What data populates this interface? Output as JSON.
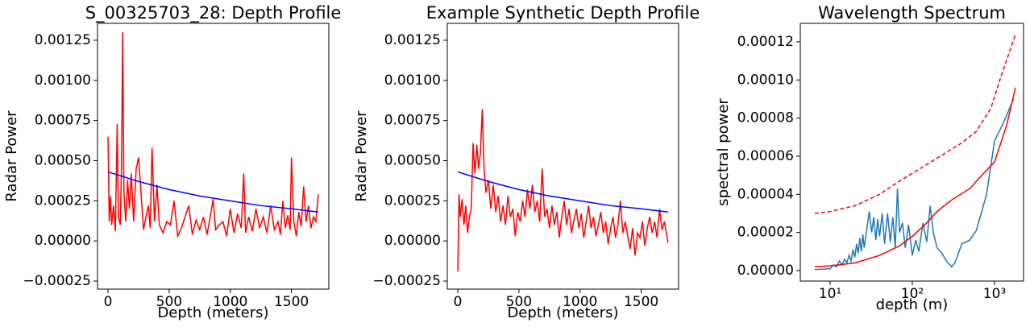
{
  "chart_data": [
    {
      "type": "line",
      "title": "S_00325703_28: Depth Profile",
      "xlabel": "Depth (meters)",
      "ylabel": "Radar Power",
      "xlim": [
        -86,
        1806
      ],
      "ylim": [
        -0.0003,
        0.001355
      ],
      "xticks": [
        0,
        500,
        1000,
        1500
      ],
      "yticks": [
        {
          "value": -0.00025,
          "label": "−0.00025"
        },
        {
          "value": 0,
          "label": "0.00000"
        },
        {
          "value": 0.00025,
          "label": "0.00025"
        },
        {
          "value": 0.0005,
          "label": "0.00050"
        },
        {
          "value": 0.00075,
          "label": "0.00075"
        },
        {
          "value": 0.001,
          "label": "0.00100"
        },
        {
          "value": 0.00125,
          "label": "0.00125"
        }
      ],
      "series": [
        {
          "color": "#ff0000",
          "x": [
            0,
            10,
            20,
            30,
            45,
            60,
            75,
            85,
            100,
            110,
            120,
            130,
            145,
            160,
            175,
            190,
            210,
            230,
            250,
            270,
            290,
            310,
            330,
            345,
            360,
            380,
            400,
            420,
            450,
            480,
            510,
            540,
            570,
            600,
            630,
            660,
            690,
            720,
            750,
            780,
            810,
            840,
            860,
            880,
            910,
            940,
            970,
            1000,
            1030,
            1060,
            1090,
            1110,
            1125,
            1150,
            1180,
            1210,
            1240,
            1270,
            1300,
            1330,
            1360,
            1390,
            1410,
            1430,
            1450,
            1470,
            1490,
            1500,
            1520,
            1540,
            1560,
            1580,
            1600,
            1620,
            1640,
            1660,
            1680,
            1700,
            1720
          ],
          "values": [
            0.00065,
            0.00012,
            0.00028,
            0.0001,
            0.00022,
            6e-05,
            0.00073,
            0.00015,
            0.0001,
            0.00045,
            0.0013,
            0.0003,
            0.00012,
            0.00038,
            0.0002,
            0.00042,
            0.00012,
            0.00045,
            0.00052,
            0.0003,
            7e-05,
            0.00015,
            0.00022,
            8e-05,
            0.00058,
            0.00012,
            0.00035,
            0.0001,
            5e-05,
            0.00012,
            0.0001,
            0.00025,
            3e-05,
            8e-05,
            0.00015,
            0.00022,
            4e-05,
            0.00013,
            7e-05,
            0.00015,
            4e-05,
            0.00017,
            0.00026,
            7e-05,
            0.0001,
            0.00012,
            3e-05,
            0.0002,
            5e-05,
            0.00017,
            8e-05,
            0.00042,
            5e-05,
            0.00015,
            6e-05,
            0.0002,
            8e-05,
            0.00015,
            5e-05,
            0.00022,
            7e-05,
            0.00012,
            4e-05,
            0.00025,
            8e-05,
            0.00016,
            7e-05,
            0.00052,
            0.00012,
            3e-05,
            0.00018,
            9e-05,
            0.00034,
            0.00012,
            0.00022,
            8e-05,
            0.00015,
            0.00012,
            0.00029
          ]
        },
        {
          "color": "#0000ff",
          "x": [
            0,
            250,
            500,
            750,
            1000,
            1250,
            1500,
            1720
          ],
          "values": [
            0.00043,
            0.00037,
            0.00032,
            0.00028,
            0.00025,
            0.00022,
            0.0002,
            0.00018
          ]
        }
      ]
    },
    {
      "type": "line",
      "title": "Example Synthetic Depth Profile",
      "xlabel": "Depth (meters)",
      "ylabel": "Radar Power",
      "xlim": [
        -86,
        1806
      ],
      "ylim": [
        -0.0003,
        0.001355
      ],
      "xticks": [
        0,
        500,
        1000,
        1500
      ],
      "yticks": [
        {
          "value": -0.00025,
          "label": "−0.00025"
        },
        {
          "value": 0,
          "label": "0.00000"
        },
        {
          "value": 0.00025,
          "label": "0.00025"
        },
        {
          "value": 0.0005,
          "label": "0.00050"
        },
        {
          "value": 0.00075,
          "label": "0.00075"
        },
        {
          "value": 0.001,
          "label": "0.00100"
        },
        {
          "value": 0.00125,
          "label": "0.00125"
        }
      ],
      "series": [
        {
          "color": "#ff0000",
          "x": [
            0,
            10,
            20,
            35,
            50,
            65,
            80,
            95,
            110,
            125,
            140,
            155,
            170,
            185,
            200,
            215,
            230,
            250,
            270,
            290,
            310,
            330,
            350,
            370,
            390,
            410,
            430,
            450,
            470,
            490,
            510,
            530,
            550,
            570,
            590,
            610,
            630,
            650,
            670,
            690,
            710,
            730,
            750,
            770,
            790,
            810,
            830,
            850,
            870,
            890,
            910,
            930,
            950,
            970,
            990,
            1010,
            1030,
            1050,
            1070,
            1090,
            1110,
            1130,
            1150,
            1170,
            1190,
            1210,
            1230,
            1250,
            1270,
            1290,
            1310,
            1330,
            1350,
            1370,
            1390,
            1410,
            1430,
            1450,
            1470,
            1490,
            1510,
            1530,
            1550,
            1570,
            1590,
            1610,
            1630,
            1650,
            1670,
            1690,
            1710,
            1720
          ],
          "values": [
            -0.00019,
            0.00029,
            0.00015,
            0.00026,
            0.0001,
            0.00022,
            5e-05,
            0.00015,
            0.0002,
            0.00061,
            0.00042,
            0.0006,
            0.00045,
            0.00055,
            0.00082,
            0.00045,
            0.0003,
            0.00038,
            0.0002,
            0.00035,
            0.00018,
            0.00028,
            0.00012,
            0.00022,
            0.0001,
            0.00028,
            0.00015,
            0.0002,
            3e-05,
            0.00018,
            0.00012,
            0.00025,
            0.00015,
            0.00032,
            0.0002,
            0.00035,
            0.00018,
            0.00025,
            0.00012,
            0.00045,
            0.00015,
            0.0002,
            8e-05,
            0.00022,
            0.0001,
            0.00018,
            2e-05,
            0.00015,
            0.00025,
            0.0001,
            0.0002,
            5e-05,
            0.00013,
            0.0002,
            8e-05,
            0.00017,
            2e-05,
            0.00012,
            0.00022,
            8e-05,
            0.00015,
            3e-05,
            0.0001,
            0.00018,
            5e-05,
            0.00012,
            -2e-05,
            8e-05,
            0.00015,
            2e-05,
            0.0001,
            0.00025,
            5e-05,
            0.00012,
            3e-05,
            -5e-05,
            8e-05,
            -9e-05,
            5e-05,
            2e-05,
            0.00012,
            -3e-05,
            8e-05,
            0.00015,
            5e-05,
            0.00012,
            2e-05,
            0.0002,
            7e-05,
            0.00012,
            3e-05,
            -1e-05
          ]
        },
        {
          "color": "#0000ff",
          "x": [
            0,
            250,
            500,
            750,
            1000,
            1250,
            1500,
            1720
          ],
          "values": [
            0.00043,
            0.00037,
            0.00032,
            0.00028,
            0.00025,
            0.00022,
            0.0002,
            0.00018
          ]
        }
      ]
    },
    {
      "type": "line",
      "title": "Wavelength Spectrum",
      "xlabel": "depth (m)",
      "ylabel": "spectral power",
      "xscale": "log",
      "xlim": [
        4.34,
        2254
      ],
      "ylim": [
        -5.5e-06,
        0.0001297
      ],
      "xticks": [
        {
          "value": 10,
          "label": "10¹"
        },
        {
          "value": 100,
          "label": "10²"
        },
        {
          "value": 1000,
          "label": "10³"
        }
      ],
      "yticks": [
        {
          "value": 0,
          "label": "0.00000"
        },
        {
          "value": 2e-05,
          "label": "0.00002"
        },
        {
          "value": 4e-05,
          "label": "0.00004"
        },
        {
          "value": 6e-05,
          "label": "0.00006"
        },
        {
          "value": 8e-05,
          "label": "0.00008"
        },
        {
          "value": 0.0001,
          "label": "0.00010"
        },
        {
          "value": 0.00012,
          "label": "0.00012"
        }
      ],
      "series": [
        {
          "color": "#1f77b4",
          "x": [
            6.5,
            10,
            11,
            12,
            13,
            14,
            15,
            16,
            17,
            18,
            19,
            20,
            21,
            22,
            23,
            24,
            25,
            26,
            28,
            30,
            32,
            34,
            36,
            38,
            40,
            43,
            46,
            50,
            54,
            58,
            62,
            66,
            70,
            76,
            82,
            90,
            100,
            110,
            120,
            135,
            150,
            165,
            180,
            200,
            230,
            260,
            300,
            330,
            400,
            500,
            600,
            800,
            1000,
            1300,
            1700
          ],
          "values": [
            5e-07,
            1e-06,
            3e-06,
            2e-06,
            5e-06,
            3e-06,
            6e-06,
            4e-06,
            8e-06,
            5e-06,
            1.1e-05,
            7e-06,
            1.4e-05,
            9e-06,
            1.7e-05,
            1e-05,
            1.9e-05,
            1.2e-05,
            2.2e-05,
            3.1e-05,
            2e-05,
            2.8e-05,
            1.6e-05,
            2.7e-05,
            1.8e-05,
            3e-05,
            1.4e-05,
            3e-05,
            1.5e-05,
            2.8e-05,
            1.2e-05,
            4.3e-05,
            2e-05,
            2.5e-05,
            1.2e-05,
            2.4e-05,
            8e-06,
            1.6e-05,
            1e-05,
            2.5e-05,
            1.5e-05,
            3.4e-05,
            2e-05,
            1.2e-05,
            9e-06,
            5e-06,
            2e-06,
            4e-06,
            1.4e-05,
            1.6e-05,
            2.1e-05,
            4e-05,
            6.8e-05,
            7.8e-05,
            9e-05
          ]
        },
        {
          "color": "#ff0000",
          "x": [
            6.5,
            10,
            20,
            40,
            70,
            100,
            150,
            200,
            300,
            500,
            700,
            1000,
            1400,
            1800
          ],
          "values": [
            2e-06,
            2.5e-06,
            4e-06,
            8e-06,
            1.3e-05,
            1.8e-05,
            2.5e-05,
            3.1e-05,
            3.7e-05,
            4.3e-05,
            5e-05,
            5.7e-05,
            7.6e-05,
            9.6e-05
          ]
        },
        {
          "color": "#ff0000",
          "linestyle": "dashed",
          "x": [
            6.5,
            10,
            20,
            40,
            70,
            100,
            200,
            400,
            600,
            900,
            1200,
            1800
          ],
          "values": [
            3e-05,
            3.1e-05,
            3.4e-05,
            4e-05,
            4.7e-05,
            5.1e-05,
            5.9e-05,
            6.7e-05,
            7.3e-05,
            8.5e-05,
            0.000102,
            0.000124
          ]
        }
      ]
    }
  ]
}
